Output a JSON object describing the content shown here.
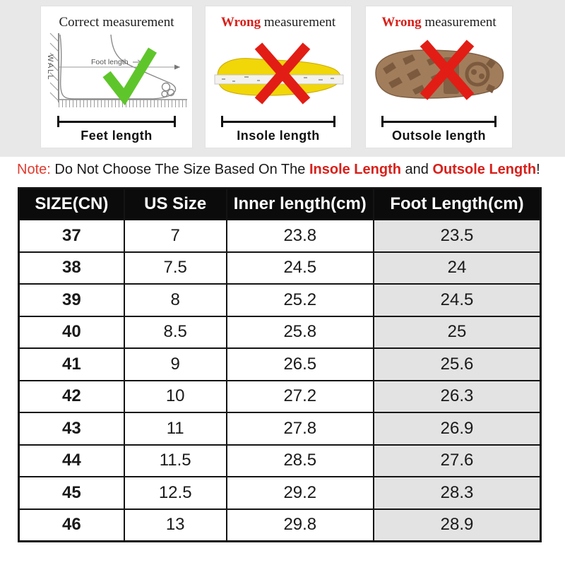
{
  "panels": [
    {
      "title_prefix": "Correct",
      "title_rest": " measurement",
      "wall_label": "WALL",
      "inner_label": "Foot length",
      "caption": "Feet length"
    },
    {
      "title_prefix": "Wrong",
      "title_rest": " measurement",
      "caption": "Insole length"
    },
    {
      "title_prefix": "Wrong",
      "title_rest": " measurement",
      "caption": "Outsole length"
    }
  ],
  "note": {
    "label": "Note:",
    "text1": " Do Not Choose The Size Based On The ",
    "highlight1": "Insole Length",
    "text2": " and ",
    "highlight2": "Outsole Length",
    "text3": "!"
  },
  "chart_data": {
    "type": "table",
    "columns": [
      "SIZE(CN)",
      "US Size",
      "Inner length(cm)",
      "Foot Length(cm)"
    ],
    "rows": [
      [
        "37",
        "7",
        "23.8",
        "23.5"
      ],
      [
        "38",
        "7.5",
        "24.5",
        "24"
      ],
      [
        "39",
        "8",
        "25.2",
        "24.5"
      ],
      [
        "40",
        "8.5",
        "25.8",
        "25"
      ],
      [
        "41",
        "9",
        "26.5",
        "25.6"
      ],
      [
        "42",
        "10",
        "27.2",
        "26.3"
      ],
      [
        "43",
        "11",
        "27.8",
        "26.9"
      ],
      [
        "44",
        "11.5",
        "28.5",
        "27.6"
      ],
      [
        "45",
        "12.5",
        "29.2",
        "28.3"
      ],
      [
        "46",
        "13",
        "29.8",
        "28.9"
      ]
    ]
  },
  "colors": {
    "wrong_red": "#d8201a",
    "check_green": "#5ec62a",
    "insole_yellow": "#f1d608",
    "outsole_brown": "#a27d5c",
    "header_bg": "#0b0b0b",
    "foot_col_bg": "#e3e3e3",
    "section_bg": "#e8e8e8"
  }
}
